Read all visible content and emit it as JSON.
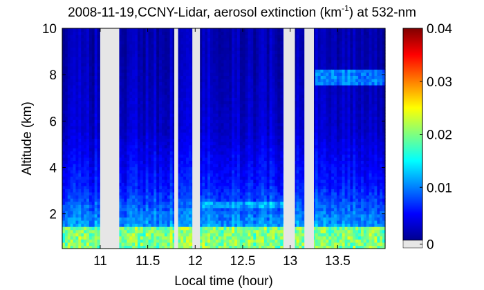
{
  "chart_data": {
    "type": "heatmap",
    "title_main": "2008-11-19,CCNY-Lidar, aerosol extinction (km",
    "title_sup": "-1",
    "title_end": ") at 532-nm",
    "xlabel": "Local time (hour)",
    "ylabel": "Altitude (km)",
    "xlim": [
      10.6,
      14.0
    ],
    "ylim": [
      0.5,
      10
    ],
    "xticks": [
      {
        "value": 11,
        "label": "11"
      },
      {
        "value": 11.5,
        "label": "11.5"
      },
      {
        "value": 12,
        "label": "12"
      },
      {
        "value": 12.5,
        "label": "12.5"
      },
      {
        "value": 13,
        "label": "13"
      },
      {
        "value": 13.5,
        "label": "13.5"
      }
    ],
    "yticks": [
      {
        "value": 2,
        "label": "2"
      },
      {
        "value": 4,
        "label": "4"
      },
      {
        "value": 6,
        "label": "6"
      },
      {
        "value": 8,
        "label": "8"
      },
      {
        "value": 10,
        "label": "10"
      }
    ],
    "colorbar": {
      "min": 0,
      "max": 0.04,
      "ticks": [
        {
          "value": 0,
          "label": "0"
        },
        {
          "value": 0.01,
          "label": "0.01"
        },
        {
          "value": 0.02,
          "label": "0.02"
        },
        {
          "value": 0.03,
          "label": "0.03"
        },
        {
          "value": 0.04,
          "label": "0.04"
        }
      ],
      "colormap": "jet",
      "nodata_color": "#e6e6e6"
    },
    "data_gaps": [
      {
        "start": 11.0,
        "end": 11.2
      },
      {
        "start": 11.78,
        "end": 11.82
      },
      {
        "start": 11.97,
        "end": 12.05
      },
      {
        "start": 12.93,
        "end": 13.05
      },
      {
        "start": 13.15,
        "end": 13.25
      }
    ],
    "features": [
      {
        "name": "boundary-layer",
        "alt_start": 0.5,
        "alt_end": 1.5,
        "value": 0.02
      },
      {
        "name": "residual-layer",
        "alt_start": 1.5,
        "alt_end": 3.2,
        "value": 0.011
      },
      {
        "name": "elevated-layer-1",
        "alt_start": 2.2,
        "alt_end": 2.6,
        "time_start": 12.0,
        "time_end": 13.0,
        "value": 0.012
      },
      {
        "name": "cloud-layer",
        "alt_start": 7.6,
        "alt_end": 8.2,
        "time_start": 13.25,
        "time_end": 14.0,
        "value": 0.01
      },
      {
        "name": "background",
        "alt_start": 3.2,
        "alt_end": 10,
        "value": 0.003
      }
    ]
  }
}
